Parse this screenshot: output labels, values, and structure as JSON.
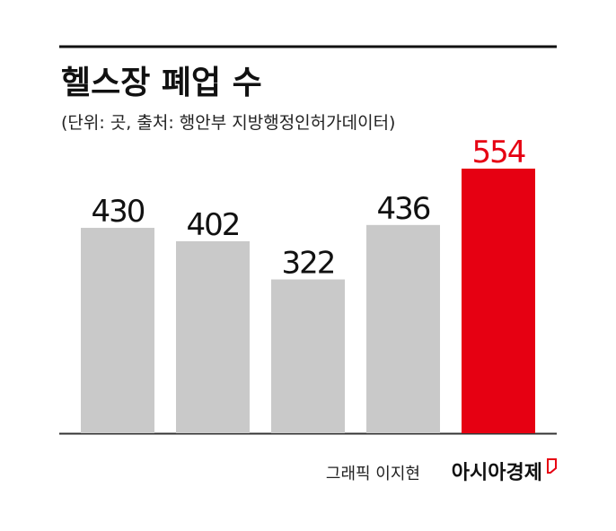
{
  "chart_data": {
    "type": "bar",
    "title": "헬스장 폐업 수",
    "subtitle": "(단위: 곳, 출처: 행안부 지방행정인허가데이터)",
    "categories": [
      null,
      null,
      null,
      null,
      null
    ],
    "values": [
      430,
      402,
      322,
      436,
      554
    ],
    "colors": [
      "#c9c9c9",
      "#c9c9c9",
      "#c9c9c9",
      "#c9c9c9",
      "#e60012"
    ],
    "label_colors": [
      "#111111",
      "#111111",
      "#111111",
      "#111111",
      "#e60012"
    ],
    "credit": "그래픽 이지현",
    "source_logo": "아시아경제"
  }
}
